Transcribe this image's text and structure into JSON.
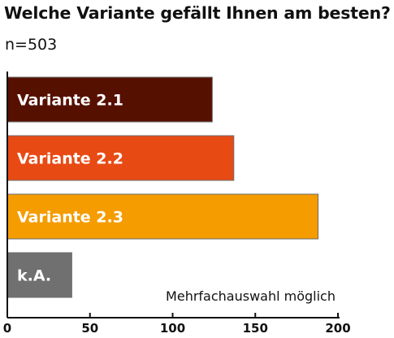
{
  "chart_data": {
    "type": "bar",
    "orientation": "horizontal",
    "title": "Welche Variante gefällt Ihnen am besten?",
    "subtitle": "n=503",
    "categories": [
      "Variante 2.1",
      "Variante 2.2",
      "Variante 2.3",
      "k.A."
    ],
    "values": [
      124,
      137,
      188,
      39
    ],
    "colors": [
      "#561000",
      "#e84a14",
      "#f49c00",
      "#707070"
    ],
    "xlim": [
      0,
      200
    ],
    "xticks": [
      0,
      50,
      100,
      150,
      200
    ],
    "tick_labels": [
      "0",
      "50",
      "100",
      "150",
      "200"
    ],
    "note": "Mehrfachauswahl möglich",
    "grid": false,
    "legend": "none"
  }
}
